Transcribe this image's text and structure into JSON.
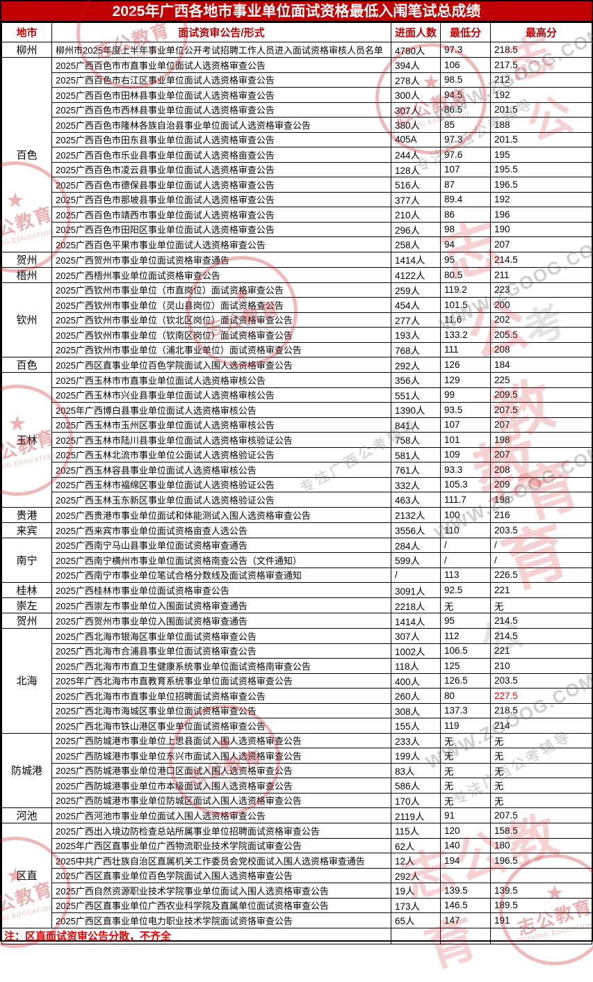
{
  "title": "2025年广西各地市事业单位面试资格最低入闱笔试总成绩",
  "note": "注：区直面试资审公告分散，不齐全",
  "colors": {
    "title_bar_bg": "#c00000",
    "header_text": "#c00000",
    "highlight_value": "#ff0000",
    "note_text": "#e80000"
  },
  "watermarks": {
    "stamp_text": "志公教育",
    "stamp_sub": "ZHIGONG EDUCATION",
    "stamp_star": "★",
    "url": "WWW.ZGOOG.COM",
    "slogan": "专注广西公考辅导",
    "big_red_1": "志公",
    "big_red_2": "志公教育",
    "big_red_3": "教育",
    "big_red_4": "志公教育",
    "big_gray_1": "考",
    "big_gray_2": "公"
  },
  "table": {
    "columns": [
      "地市",
      "面试资审公告/形式",
      "进面人数",
      "最低分",
      "最高分"
    ],
    "groups": [
      {
        "city": "柳州",
        "rows": [
          {
            "announcement": "柳州市2025年度上半年事业单位公开考试招聘工作人员进入面试资格审核人员名单",
            "count": "4780人",
            "min": "97.3",
            "max": "218.5"
          }
        ]
      },
      {
        "city": "百色",
        "rows": [
          {
            "announcement": "2025广西百色市市直事业单位面试人选资格审查公告",
            "count": "394人",
            "min": "106",
            "max": "217.5"
          },
          {
            "announcement": "2025广西百色市右江区事业单位面试人选资格审查公告",
            "count": "278人",
            "min": "98.5",
            "max": "212"
          },
          {
            "announcement": "2025广西百色市田林县事业单位面试人选资格审查公告",
            "count": "300人",
            "min": "94.5",
            "max": "192"
          },
          {
            "announcement": "2025广西百色市西林县事业单位面试人选资格审查公告",
            "count": "307人",
            "min": "86.5",
            "max": "201.5"
          },
          {
            "announcement": "2025广西百色市隆林各族自治县事业单位面试人选资格审查公告",
            "count": "380人",
            "min": "85",
            "max": "188"
          },
          {
            "announcement": "2025广西百色市田东县事业单位面试人选资格审查公告",
            "count": "405A",
            "min": "97.3",
            "max": "201.5"
          },
          {
            "announcement": "2025广西百色市乐业县事业单位面试人选资格亩查公告",
            "count": "244人",
            "min": "97.6",
            "max": "195"
          },
          {
            "announcement": "2025广西百色市凌云县事业单位面试人选资格审查公告",
            "count": "128人",
            "min": "107",
            "max": "195.5"
          },
          {
            "announcement": "2025广西百色市德保县事业单位面试人选资格审查公告",
            "count": "516人",
            "min": "87",
            "max": "196.5"
          },
          {
            "announcement": "2025广西百色市那坡县事业单位面试人选资格审查公告",
            "count": "377人",
            "min": "89.4",
            "max": "192"
          },
          {
            "announcement": "2025广西百色市靖西市事业单位面试人选资格审查公告",
            "count": "210人",
            "min": "86",
            "max": "196"
          },
          {
            "announcement": "2025广西百色市田阳区事业单位面试人选资格审查公告",
            "count": "296人",
            "min": "98",
            "max": "190"
          },
          {
            "announcement": "2025广西百色平果市事业单位面试人选资格审查公告",
            "count": "258人",
            "min": "94",
            "max": "207"
          }
        ]
      },
      {
        "city": "贺州",
        "rows": [
          {
            "announcement": "2025广西贺州市事业单位面试资格审查通告",
            "count": "1414人",
            "min": "95",
            "max": "214.5"
          }
        ]
      },
      {
        "city": "梧州",
        "rows": [
          {
            "announcement": "2025广西梧州事业单位面试资格审查公告",
            "count": "4122人",
            "min": "80.5",
            "max": "211"
          }
        ]
      },
      {
        "city": "钦州",
        "rows": [
          {
            "announcement": "2025广西钦州市事业单位（市直岗位）面试资格审查公告",
            "count": "259人",
            "min": "119.2",
            "max": "223"
          },
          {
            "announcement": "2025广西钦州市事业单位（灵山县岗位）面试资格查公告",
            "count": "454人",
            "min": "101.5",
            "max": "200"
          },
          {
            "announcement": "2025广西钦州市事业单位（钦北区岗位）面试资格审查公告",
            "count": "277人",
            "min": "11.6",
            "max": "202"
          },
          {
            "announcement": "2025广西钦州市事业单位（钦南区岗位）面试资格审查公告",
            "count": "193人",
            "min": "133.2",
            "max": "205.5"
          },
          {
            "announcement": "2025广西钦州市事业单位（浦北事业单位）面试资格审查公告",
            "count": "768人",
            "min": "111",
            "max": "208"
          }
        ]
      },
      {
        "city": "百色",
        "rows": [
          {
            "announcement": "2025广西区直事业单位百色学院面试入围人选资格审查公告",
            "count": "292人",
            "min": "126",
            "max": "184"
          }
        ]
      },
      {
        "city": "玉林",
        "rows": [
          {
            "announcement": "2025广西玉林市市直事业单位面试人选资格审核公告",
            "count": "356人",
            "min": "129",
            "max": "225"
          },
          {
            "announcement": "2025广西玉林市兴业县事业单位面试人选资格审核公告",
            "count": "551人",
            "min": "99",
            "max": "209.5"
          },
          {
            "announcement": "2025年广西博白县事业单位面试人选资格审核公告",
            "count": "1390人",
            "min": "93.5",
            "max": "207.5"
          },
          {
            "announcement": "2025广西玉林市玉州区事业单位面试人选资格审核公告",
            "count": "841人",
            "min": "107",
            "max": "207"
          },
          {
            "announcement": "2025广西玉林市陆川县事业单位面试人选资格审核验证公告",
            "count": "758人",
            "min": "101",
            "max": "198"
          },
          {
            "announcement": "2025广西玉林北流市事业单位公面试人选资格验证公告",
            "count": "581人",
            "min": "109",
            "max": "207"
          },
          {
            "announcement": "2025广西玉林容县事业单位面试人选资格审核公告",
            "count": "761人",
            "min": "93.3",
            "max": "208"
          },
          {
            "announcement": "2025广西玉林市福绵区事业单位面试人选资格验证公告",
            "count": "332人",
            "min": "105.3",
            "max": "209"
          },
          {
            "announcement": "2025广西玉林玉东新区事业单位面试人选资格验证公告",
            "count": "463人",
            "min": "111.7",
            "max": "198"
          }
        ]
      },
      {
        "city": "贵港",
        "rows": [
          {
            "announcement": "2025广西贵港市事业单位面试和体能测试入围人选资格审查公告",
            "count": "2132人",
            "min": "100",
            "max": "216"
          }
        ]
      },
      {
        "city": "来宾",
        "rows": [
          {
            "announcement": "2025广西来宾市事业单位面试资格亩查人选公告",
            "count": "3556人",
            "min": "110",
            "max": "203.5"
          }
        ]
      },
      {
        "city": "南宁",
        "rows": [
          {
            "announcement": "2025广西南宁马山县事业单位面试资格审查通告",
            "count": "284人",
            "min": "/",
            "max": "/"
          },
          {
            "announcement": "2025广西南宁横州市事业单位面试资格南查公告（文件通知）",
            "count": "599人",
            "min": "/",
            "max": "/"
          },
          {
            "announcement": "2025广西南宁市事业单位笔试合格分数线及面试资格审查通知",
            "count": "/",
            "min": "113",
            "max": "226.5"
          }
        ]
      },
      {
        "city": "桂林",
        "rows": [
          {
            "announcement": "2025广西桂林市事业单位面试资格审查公告",
            "count": "3091人",
            "min": "92.5",
            "max": "221"
          }
        ]
      },
      {
        "city": "崇左",
        "rows": [
          {
            "announcement": "2025广西崇左市事业单位入围面试资格审查通告",
            "count": "2218人",
            "min": "无",
            "max": "无"
          }
        ]
      },
      {
        "city": "贺州",
        "rows": [
          {
            "announcement": "2025广西贺州市事业单位入围面试资格审查通告",
            "count": "1414人",
            "min": "95",
            "max": "214.5"
          }
        ]
      },
      {
        "city": "北海",
        "rows": [
          {
            "announcement": "2025广西北海市银海区事业单位面试资格审查公告",
            "count": "307人",
            "min": "112",
            "max": "214.5"
          },
          {
            "announcement": "2025广西北海市合浦县事业单位面试资格审查公告",
            "count": "1002人",
            "min": "106.5",
            "max": "221"
          },
          {
            "announcement": "2025广西北海市市直卫生健康系统事业单位面试资格南审查公告",
            "count": "118人",
            "min": "125",
            "max": "210"
          },
          {
            "announcement": "2025年广西北海市市直教育系统事业单位面试资格审查公告",
            "count": "400人",
            "min": "126.5",
            "max": "203.5"
          },
          {
            "announcement": "2025广西北海市市直事业单位招聘面试资格审查公告",
            "count": "260人",
            "min": "80",
            "max": "227.5",
            "max_red": true
          },
          {
            "announcement": "2025广西北海市海城区事业单位面试资格审查公告",
            "count": "308人",
            "min": "137.3",
            "max": "218.5"
          },
          {
            "announcement": "2025广西北海市铁山港区事业单位面试资格审查公告",
            "count": "155人",
            "min": "119",
            "max": "214"
          }
        ]
      },
      {
        "city": "防城港",
        "rows": [
          {
            "announcement": "2025广西防城港市事业单位上思县面试入围人选资格审查公告",
            "count": "233人",
            "min": "无",
            "max": "无"
          },
          {
            "announcement": "2025广西防城港市事业单位东兴市面试入围人选资格审查公告",
            "count": "199人",
            "min": "无",
            "max": "无"
          },
          {
            "announcement": "2025广西防城港事业单位港口区面试入围人选资格审查公告",
            "count": "83人",
            "min": "无",
            "max": "无"
          },
          {
            "announcement": "2025广西防城港事业单位市本级面试入围人选资格审查公告",
            "count": "586人",
            "min": "无",
            "max": "无"
          },
          {
            "announcement": "2025广西防城港市事业单位防城区面试入围人选资格审查公告",
            "count": "170人",
            "min": "无",
            "max": "无"
          }
        ]
      },
      {
        "city": "河池",
        "rows": [
          {
            "announcement": "2025广西河池市事业单位面试入围人选资格审查公告",
            "count": "2119人",
            "min": "91",
            "max": "207.5"
          }
        ]
      },
      {
        "city": "区直",
        "rows": [
          {
            "announcement": "2025广西出入境边防检查总站所属事业单位招聘面试资格审查公告",
            "count": "115人",
            "min": "120",
            "max": "158.5"
          },
          {
            "announcement": "2025年广西区直事业单位广西物流职业技术学院面试审查公告",
            "count": "62人",
            "min": "140",
            "max": "180"
          },
          {
            "announcement": "2025中共广西壮族自治区直属机关工作委员会党校面试入围人选资格审查通告",
            "count": "12人",
            "min": "194",
            "max": "196.5"
          },
          {
            "announcement": "2025广西区直事业单位百色学院面试入围人选资格审查公告",
            "count": "292人",
            "min": "",
            "max": ""
          },
          {
            "announcement": "2025广西自然资源职业技术学院事业单位面试入围人选资格审查公告",
            "count": "19人",
            "min": "139.5",
            "max": "139.5"
          },
          {
            "announcement": "2025广西区直事业单位广西农业科学院及直属单位面试资格审查公告",
            "count": "173人",
            "min": "146.5",
            "max": "189.5"
          },
          {
            "announcement": "2025广西区直事业单位电力职业技术学院面试资恪审查公告",
            "count": "65人",
            "min": "147",
            "max": "191"
          }
        ]
      }
    ]
  }
}
